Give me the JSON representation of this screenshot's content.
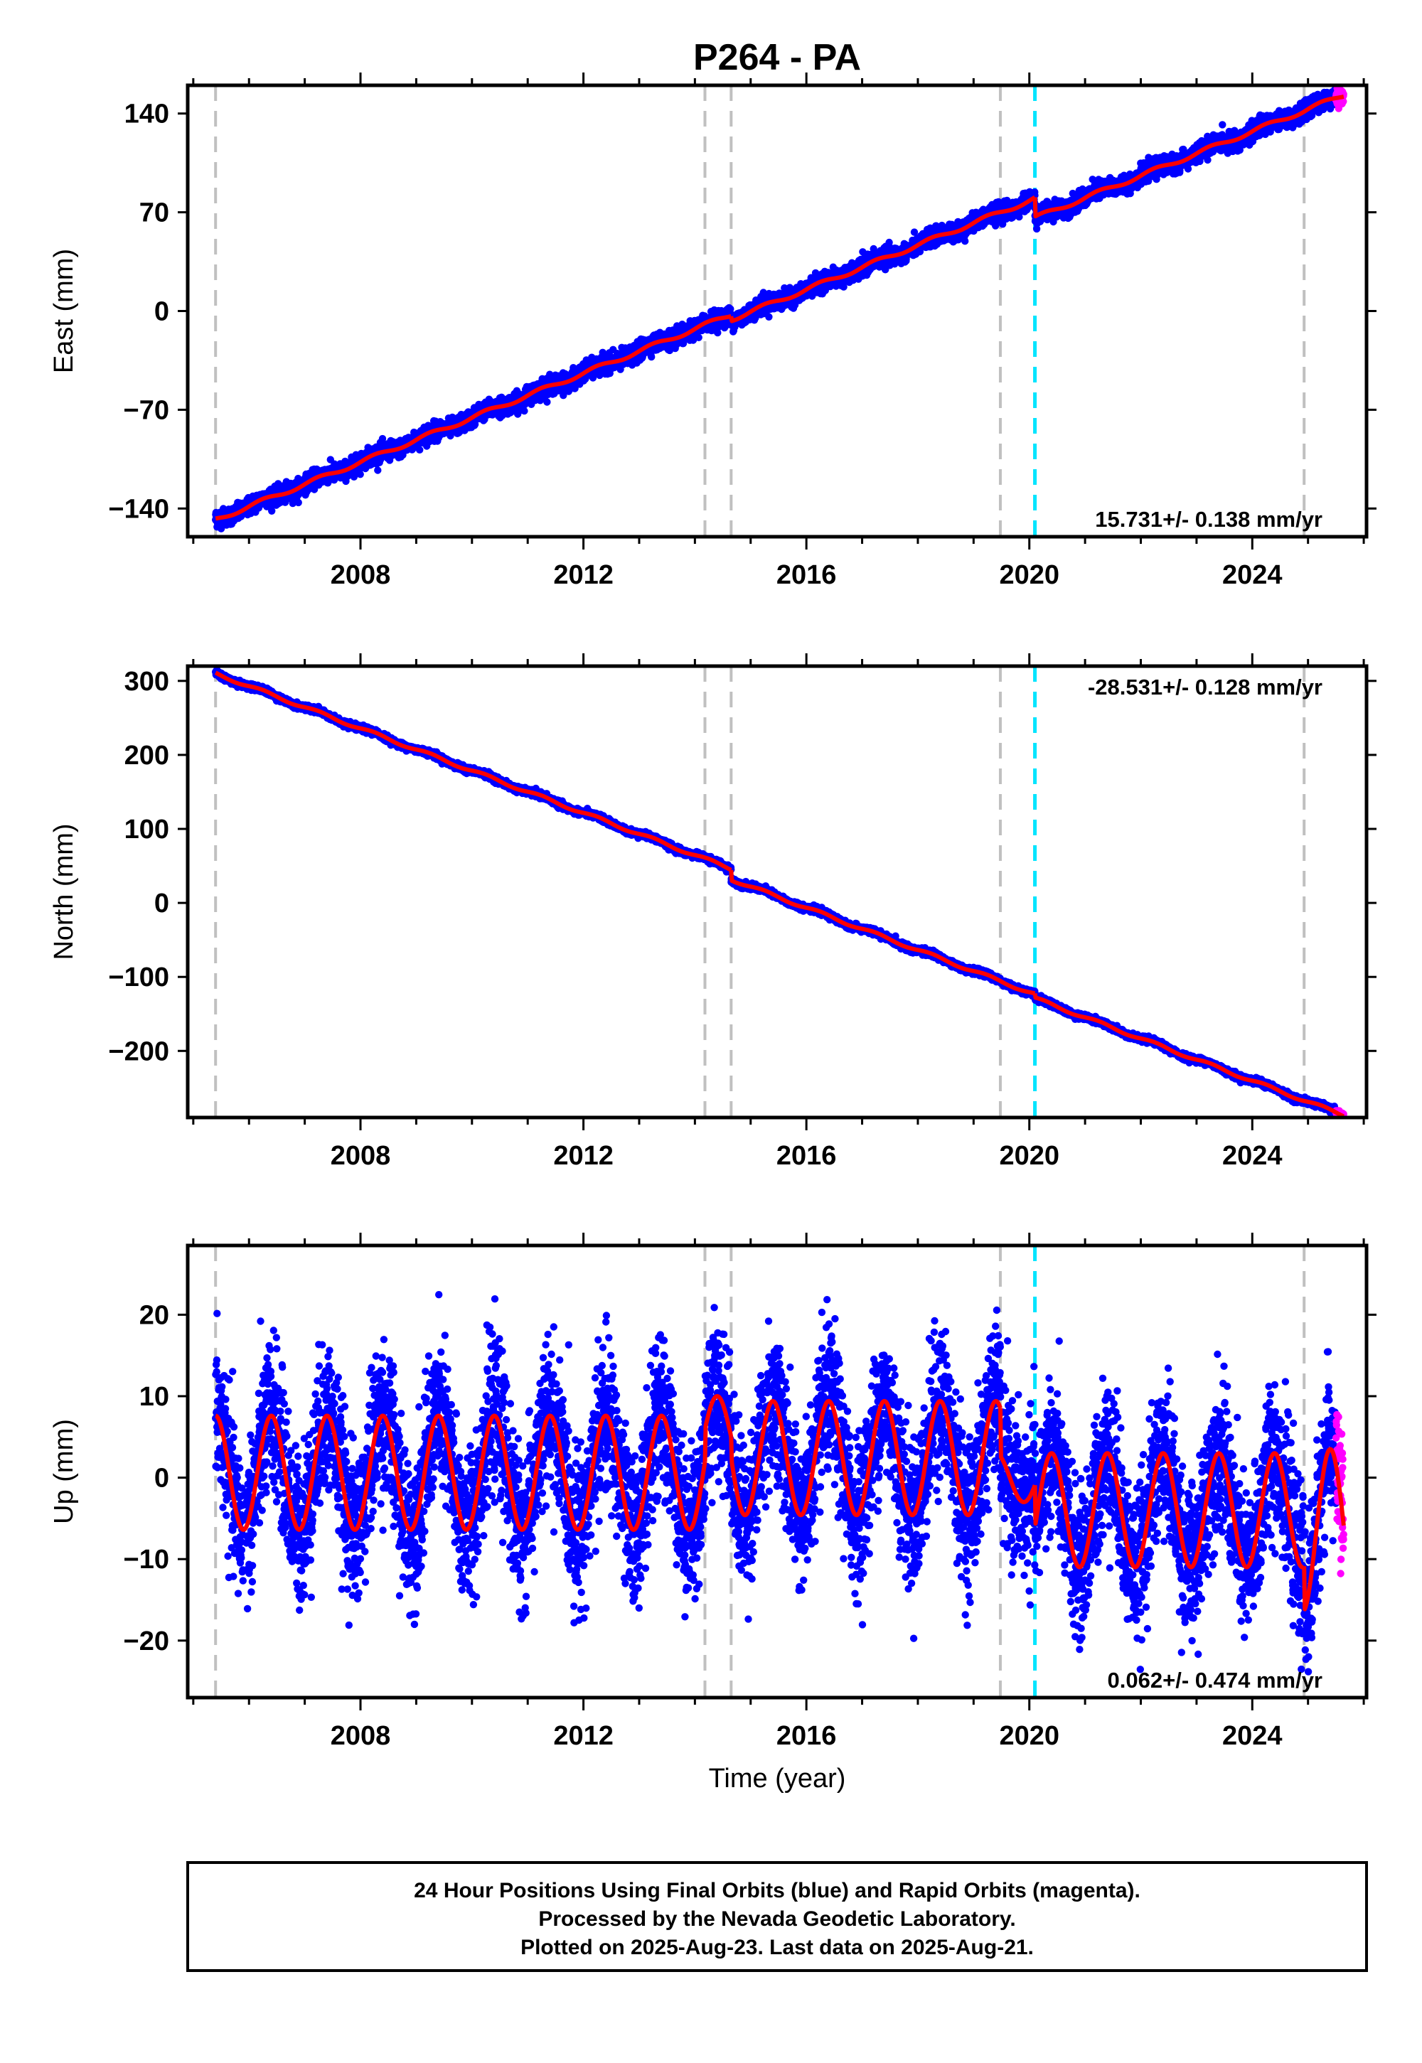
{
  "chart_data": {
    "type": "scatter",
    "title": "P264 - PA",
    "xlabel": "Time (year)",
    "xlim": [
      2004.9,
      2026.05
    ],
    "x_ticks": [
      2008,
      2012,
      2016,
      2020,
      2024
    ],
    "x_tick_labels": [
      "2008",
      "2012",
      "2016",
      "2020",
      "2024"
    ],
    "data_start": 2005.4,
    "data_end": 2025.64,
    "rapid_start": 2025.5,
    "gray_dashed_lines": [
      2005.4,
      2014.18,
      2014.65,
      2019.48,
      2024.93
    ],
    "cyan_dashed_lines": [
      2020.1
    ],
    "colors": {
      "final_orbits": "#0000ff",
      "rapid_orbits": "#ff00ff",
      "model": "#ff0000",
      "equipment_change": "#c0c0c0",
      "earthquake": "#00e5ff"
    },
    "panels": [
      {
        "name": "east",
        "ylabel": "East (mm)",
        "ylim": [
          -160,
          160
        ],
        "y_ticks": [
          -140,
          -70,
          0,
          70,
          140
        ],
        "y_tick_labels": [
          "-140",
          "-70",
          "0",
          "70",
          "140"
        ],
        "rate": "15.731+/- 0.138 mm/yr",
        "rate_position": "bottom-right",
        "segments": [
          {
            "start": 2005.4,
            "end": 2014.65,
            "slope": 15.73,
            "intercept_at_start": -148,
            "amplitude": 1.5,
            "phase": 0
          },
          {
            "start": 2014.65,
            "end": 2020.1,
            "slope": 15.73,
            "intercept_at_start": -6,
            "amplitude": 1.5,
            "phase": 0
          },
          {
            "start": 2020.1,
            "end": 2025.64,
            "slope": 15.73,
            "intercept_at_start": 66,
            "amplitude": 1.5,
            "phase": 0
          }
        ],
        "noise": 3
      },
      {
        "name": "north",
        "ylabel": "North (mm)",
        "ylim": [
          -290,
          320
        ],
        "y_ticks": [
          -200,
          -100,
          0,
          100,
          200,
          300
        ],
        "y_tick_labels": [
          "-200",
          "-100",
          "0",
          "100",
          "200",
          "300"
        ],
        "rate": "-28.531+/- 0.128 mm/yr",
        "rate_position": "top-right",
        "segments": [
          {
            "start": 2005.4,
            "end": 2014.65,
            "slope": -28.53,
            "intercept_at_start": 310,
            "amplitude": 2,
            "phase": 0
          },
          {
            "start": 2014.65,
            "end": 2020.1,
            "slope": -28.53,
            "intercept_at_start": 32,
            "amplitude": 2,
            "phase": 0
          },
          {
            "start": 2020.1,
            "end": 2025.64,
            "slope": -28.53,
            "intercept_at_start": -129,
            "amplitude": 2,
            "phase": 0
          }
        ],
        "noise": 2
      },
      {
        "name": "up",
        "ylabel": "Up (mm)",
        "ylim": [
          -27,
          28.5
        ],
        "y_ticks": [
          -20,
          -10,
          0,
          10,
          20
        ],
        "y_tick_labels": [
          "-20",
          "-10",
          "0",
          "10",
          "20"
        ],
        "rate": "0.062+/- 0.474 mm/yr",
        "rate_position": "bottom-right",
        "segments": [
          {
            "start": 2005.4,
            "end": 2014.18,
            "slope": 0,
            "intercept_at_start": 0.6,
            "amplitude": 7,
            "phase": 0.15
          },
          {
            "start": 2014.18,
            "end": 2014.65,
            "slope": 0,
            "intercept_at_start": 5,
            "amplitude": 5,
            "phase": 0.15
          },
          {
            "start": 2014.65,
            "end": 2019.48,
            "slope": 0,
            "intercept_at_start": 2.4,
            "amplitude": 7,
            "phase": 0.15
          },
          {
            "start": 2019.48,
            "end": 2020.1,
            "slope": 0,
            "intercept_at_start": 0,
            "amplitude": 3,
            "phase": 0.15
          },
          {
            "start": 2020.1,
            "end": 2024.93,
            "slope": 0,
            "intercept_at_start": -4,
            "amplitude": 7,
            "phase": 0.15
          },
          {
            "start": 2024.93,
            "end": 2025.64,
            "slope": 0,
            "intercept_at_start": -6.5,
            "amplitude": 10,
            "phase": 0.15
          }
        ],
        "noise": 4.5
      }
    ]
  },
  "footer": {
    "line1": "24 Hour Positions Using Final Orbits (blue) and Rapid Orbits (magenta).",
    "line2": "Processed by the Nevada Geodetic Laboratory.",
    "line3": "Plotted on 2025-Aug-23. Last data on 2025-Aug-21."
  }
}
